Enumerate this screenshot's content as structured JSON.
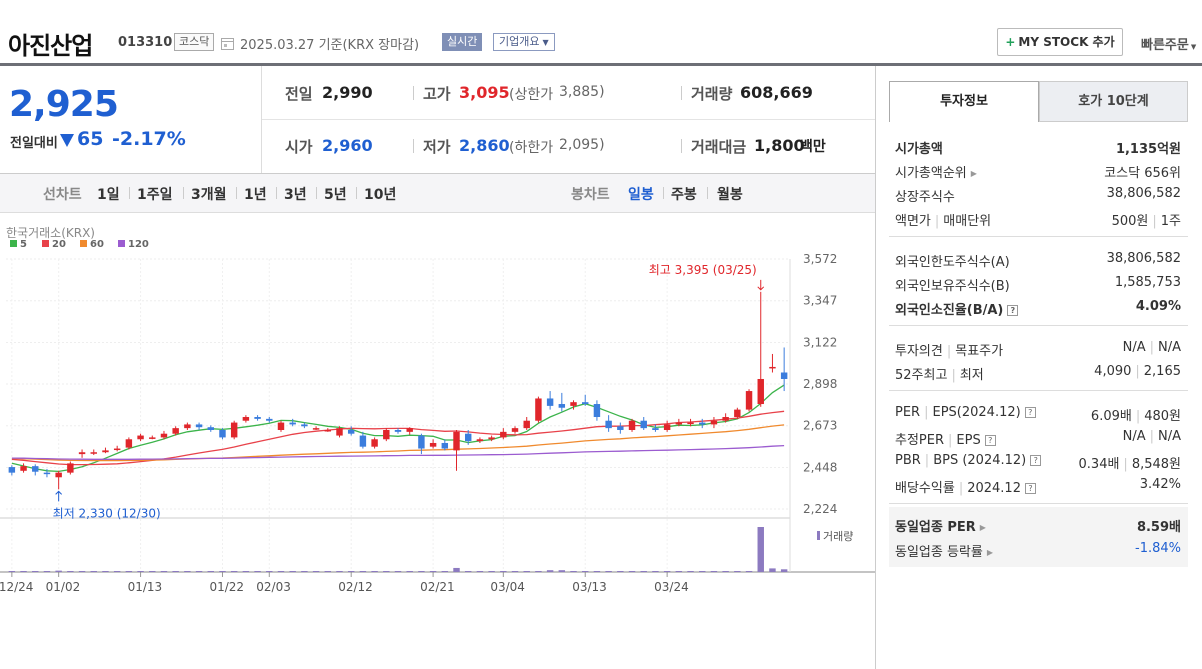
{
  "header": {
    "company": "아진산업",
    "code": "013310",
    "market": "코스닥",
    "date_note": "2025.03.27  기준(KRX 장마감)",
    "realtime": "실시간",
    "company_info": "기업개요",
    "my_stock": "MY STOCK 추가",
    "quick_order": "빠른주문"
  },
  "price": {
    "current": "2,925",
    "change_label": "전일대비",
    "change": "65",
    "change_pct": "-2.17%"
  },
  "summary": {
    "prev_label": "전일",
    "prev": "2,990",
    "high_label": "고가",
    "high": "3,095",
    "upper_label": "(상한가",
    "upper": "3,885)",
    "volume_label": "거래량",
    "volume": "608,669",
    "open_label": "시가",
    "open": "2,960",
    "low_label": "저가",
    "low": "2,860",
    "lower_label": "(하한가",
    "lower": "2,095)",
    "amount_label": "거래대금",
    "amount": "1,800",
    "amount_unit": "백만"
  },
  "tabs": {
    "line_label": "선차트",
    "line": [
      "1일",
      "1주일",
      "3개월",
      "1년",
      "3년",
      "5년",
      "10년"
    ],
    "candle_label": "봉차트",
    "candle": [
      "일봉",
      "주봉",
      "월봉"
    ],
    "candle_active": "일봉"
  },
  "right": {
    "tab_info": "투자정보",
    "tab_quote": "호가 10단계",
    "rows1": [
      {
        "label": "시가총액",
        "value": "1,135억원"
      },
      {
        "label": "시가총액순위",
        "value": "코스닥 656위"
      },
      {
        "label": "상장주식수",
        "value": "38,806,582"
      },
      {
        "label": "액면가",
        "label2": "매매단위",
        "value": "500원",
        "value2": "1주"
      }
    ],
    "rows2": [
      {
        "label": "외국인한도주식수(A)",
        "value": "38,806,582"
      },
      {
        "label": "외국인보유주식수(B)",
        "value": "1,585,753"
      },
      {
        "label": "외국인소진율(B/A)",
        "value": "4.09%"
      }
    ],
    "rows3": [
      {
        "label": "투자의견",
        "label2": "목표주가",
        "value": "N/A",
        "value2": "N/A"
      },
      {
        "label": "52주최고",
        "label2": "최저",
        "value": "4,090",
        "value2": "2,165"
      }
    ],
    "rows4": [
      {
        "label": "PER",
        "label2": "EPS(2024.12)",
        "value": "6.09배",
        "value2": "480원"
      },
      {
        "label": "추정PER",
        "label2": "EPS",
        "value": "N/A",
        "value2": "N/A"
      },
      {
        "label": "PBR",
        "label2": "BPS (2024.12)",
        "value": "0.34배",
        "value2": "8,548원"
      },
      {
        "label": "배당수익률",
        "label2": "2024.12",
        "value": "3.42%"
      }
    ],
    "peer": [
      {
        "label": "동일업종 PER",
        "value": "8.59배"
      },
      {
        "label": "동일업종 등락률",
        "value": "-1.84%"
      }
    ]
  },
  "chart_data": {
    "type": "candlestick",
    "source": "한국거래소(KRX)",
    "ma_legend": [
      {
        "name": "5",
        "color": "#3cb44b"
      },
      {
        "name": "20",
        "color": "#e8424a"
      },
      {
        "name": "60",
        "color": "#f08a2e"
      },
      {
        "name": "120",
        "color": "#9b5cd0"
      }
    ],
    "y_ticks": [
      2224,
      2448,
      2673,
      2898,
      3122,
      3347,
      3572
    ],
    "y_tick_labels": [
      "2,224",
      "2,448",
      "2,673",
      "2,898",
      "3,122",
      "3,347",
      "3,572"
    ],
    "ylim": [
      2224,
      3572
    ],
    "x_tick_labels": [
      "12/24",
      "01/02",
      "01/13",
      "01/22",
      "02/03",
      "02/12",
      "02/21",
      "03/04",
      "03/13",
      "03/24"
    ],
    "x_tick_index": [
      0,
      4,
      11,
      18,
      22,
      29,
      36,
      42,
      49,
      56
    ],
    "max_label": "최고 3,395 (03/25)",
    "min_label": "최저 2,330 (12/30)",
    "volume_label": "거래량",
    "candles": [
      [
        2450,
        2420,
        2460,
        2405
      ],
      [
        2430,
        2455,
        2470,
        2420
      ],
      [
        2455,
        2425,
        2465,
        2405
      ],
      [
        2420,
        2415,
        2440,
        2395
      ],
      [
        2395,
        2420,
        2430,
        2330
      ],
      [
        2420,
        2470,
        2480,
        2410
      ],
      [
        2520,
        2530,
        2545,
        2500
      ],
      [
        2530,
        2530,
        2545,
        2515
      ],
      [
        2530,
        2540,
        2555,
        2525
      ],
      [
        2545,
        2550,
        2565,
        2535
      ],
      [
        2555,
        2600,
        2610,
        2545
      ],
      [
        2600,
        2620,
        2630,
        2590
      ],
      [
        2610,
        2610,
        2620,
        2600
      ],
      [
        2610,
        2630,
        2645,
        2600
      ],
      [
        2630,
        2660,
        2670,
        2620
      ],
      [
        2660,
        2680,
        2690,
        2650
      ],
      [
        2680,
        2665,
        2690,
        2650
      ],
      [
        2665,
        2650,
        2675,
        2640
      ],
      [
        2650,
        2610,
        2660,
        2600
      ],
      [
        2610,
        2690,
        2700,
        2600
      ],
      [
        2700,
        2720,
        2730,
        2690
      ],
      [
        2720,
        2710,
        2730,
        2700
      ],
      [
        2710,
        2700,
        2720,
        2690
      ],
      [
        2650,
        2690,
        2700,
        2640
      ],
      [
        2690,
        2680,
        2710,
        2670
      ],
      [
        2680,
        2670,
        2690,
        2660
      ],
      [
        2660,
        2660,
        2670,
        2650
      ],
      [
        2650,
        2650,
        2660,
        2640
      ],
      [
        2620,
        2660,
        2670,
        2610
      ],
      [
        2650,
        2630,
        2670,
        2620
      ],
      [
        2620,
        2560,
        2640,
        2550
      ],
      [
        2560,
        2600,
        2610,
        2550
      ],
      [
        2600,
        2650,
        2660,
        2590
      ],
      [
        2650,
        2640,
        2660,
        2630
      ],
      [
        2640,
        2660,
        2665,
        2625
      ],
      [
        2620,
        2550,
        2630,
        2520
      ],
      [
        2560,
        2580,
        2600,
        2550
      ],
      [
        2580,
        2550,
        2600,
        2540
      ],
      [
        2540,
        2640,
        2650,
        2430
      ],
      [
        2630,
        2590,
        2650,
        2570
      ],
      [
        2590,
        2600,
        2610,
        2580
      ],
      [
        2600,
        2610,
        2620,
        2590
      ],
      [
        2610,
        2640,
        2660,
        2600
      ],
      [
        2640,
        2660,
        2670,
        2630
      ],
      [
        2660,
        2700,
        2720,
        2650
      ],
      [
        2700,
        2820,
        2830,
        2690
      ],
      [
        2820,
        2780,
        2860,
        2760
      ],
      [
        2790,
        2770,
        2850,
        2750
      ],
      [
        2780,
        2800,
        2810,
        2760
      ],
      [
        2800,
        2790,
        2840,
        2780
      ],
      [
        2790,
        2720,
        2810,
        2700
      ],
      [
        2700,
        2660,
        2730,
        2640
      ],
      [
        2670,
        2650,
        2690,
        2630
      ],
      [
        2650,
        2700,
        2710,
        2640
      ],
      [
        2700,
        2660,
        2720,
        2650
      ],
      [
        2660,
        2650,
        2680,
        2640
      ],
      [
        2650,
        2680,
        2700,
        2640
      ],
      [
        2680,
        2690,
        2710,
        2670
      ],
      [
        2690,
        2690,
        2710,
        2670
      ],
      [
        2690,
        2680,
        2710,
        2660
      ],
      [
        2680,
        2700,
        2720,
        2660
      ],
      [
        2700,
        2720,
        2740,
        2690
      ],
      [
        2720,
        2760,
        2770,
        2710
      ],
      [
        2760,
        2860,
        2870,
        2750
      ],
      [
        2790,
        2925,
        3395,
        2775
      ],
      [
        2990,
        2990,
        3060,
        2960
      ],
      [
        2960,
        2925,
        3095,
        2860
      ]
    ],
    "volume_rel": [
      0.02,
      0.02,
      0.02,
      0.02,
      0.03,
      0.02,
      0.02,
      0.02,
      0.02,
      0.02,
      0.02,
      0.02,
      0.02,
      0.02,
      0.02,
      0.02,
      0.02,
      0.02,
      0.02,
      0.02,
      0.02,
      0.02,
      0.02,
      0.02,
      0.02,
      0.02,
      0.02,
      0.02,
      0.02,
      0.02,
      0.02,
      0.02,
      0.02,
      0.02,
      0.02,
      0.02,
      0.02,
      0.02,
      0.09,
      0.02,
      0.02,
      0.02,
      0.02,
      0.02,
      0.02,
      0.02,
      0.04,
      0.04,
      0.02,
      0.02,
      0.02,
      0.02,
      0.02,
      0.02,
      0.02,
      0.02,
      0.02,
      0.02,
      0.02,
      0.02,
      0.02,
      0.02,
      0.02,
      0.02,
      1.0,
      0.08,
      0.06
    ]
  }
}
